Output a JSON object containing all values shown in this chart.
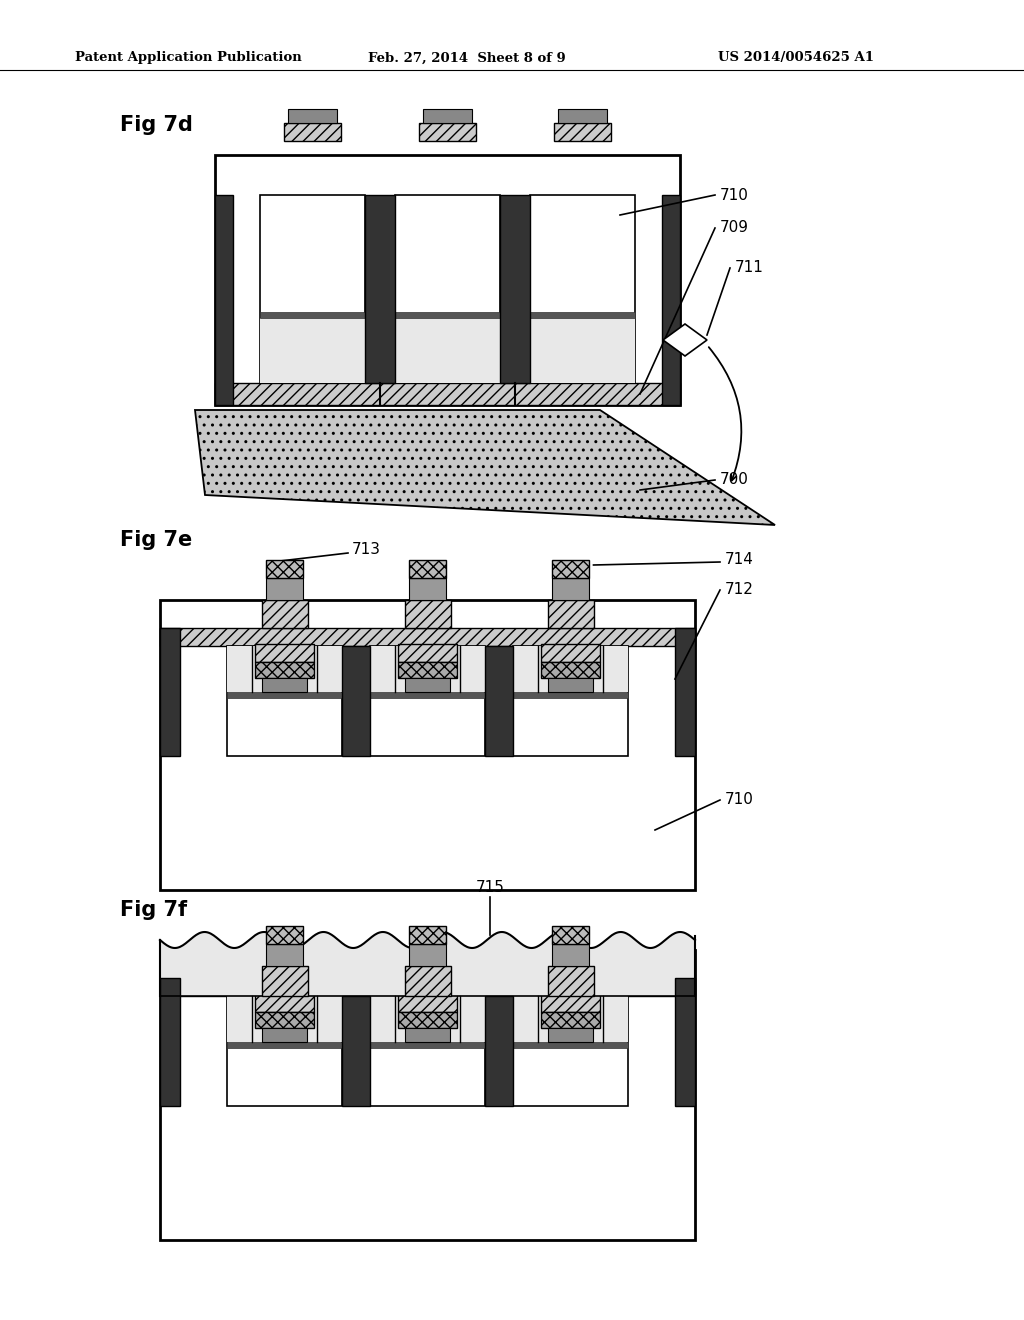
{
  "bg_color": "#ffffff",
  "line_color": "#000000",
  "header_left": "Patent Application Publication",
  "header_mid": "Feb. 27, 2014  Sheet 8 of 9",
  "header_right": "US 2014/0054625 A1",
  "fig7d_label": "Fig 7d",
  "fig7e_label": "Fig 7e",
  "fig7f_label": "Fig 7f"
}
